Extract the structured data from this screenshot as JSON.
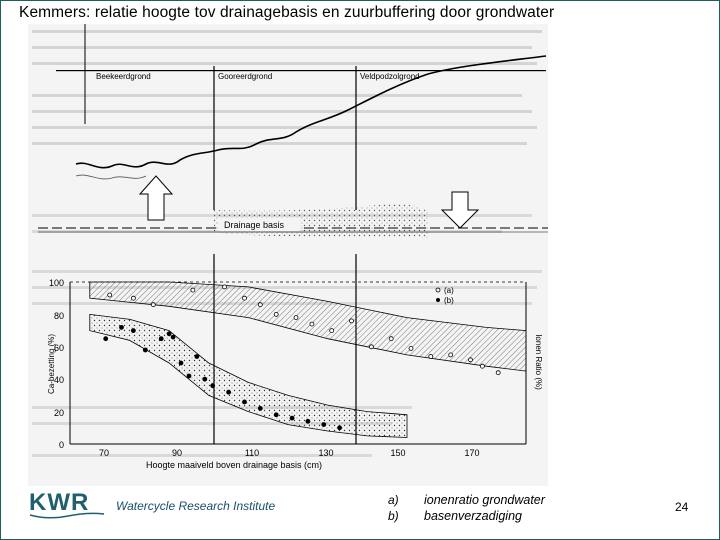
{
  "slide": {
    "title": "Kemmers: relatie hoogte tov drainagebasis  en zuurbuffering door grondwater",
    "page_number": "24"
  },
  "profile": {
    "labels": [
      "Beekeerdgrond",
      "Gooreerdgrond",
      "Veldpodzolgrond"
    ],
    "drainage_label": "Drainage basis"
  },
  "chart": {
    "y_left_label": "Ca-bezetting (%)",
    "y_right_label": "Ionen Ratio (%)",
    "x_label": "Hoogte maaiveld boven drainage basis (cm)",
    "legend": [
      "(a)",
      "(b)"
    ],
    "y_ticks": [
      "100",
      "80",
      "60",
      "40",
      "20",
      "0"
    ],
    "x_ticks": [
      "70",
      "90",
      "110",
      "130",
      "150",
      "170"
    ]
  },
  "chart_data": {
    "type": "scatter",
    "xlabel": "Hoogte maaiveld boven drainage basis (cm)",
    "ylabel": "Ca-bezetting (%)",
    "y2label": "Ionen Ratio (%)",
    "xlim": [
      70,
      180
    ],
    "ylim": [
      0,
      100
    ],
    "series": [
      {
        "name": "(a)",
        "x": [
          75,
          81,
          86,
          96,
          104,
          109,
          113,
          117,
          122,
          126,
          131,
          136,
          141,
          146,
          151,
          156,
          161,
          166,
          169,
          173
        ],
        "y": [
          92,
          90,
          86,
          95,
          97,
          90,
          86,
          80,
          78,
          74,
          70,
          76,
          60,
          65,
          59,
          54,
          55,
          52,
          48,
          44
        ]
      },
      {
        "name": "(b)",
        "x": [
          74,
          78,
          81,
          84,
          88,
          90,
          91,
          93,
          95,
          97,
          99,
          101,
          105,
          109,
          113,
          117,
          121,
          125,
          129,
          133
        ],
        "y": [
          65,
          72,
          70,
          58,
          65,
          68,
          66,
          50,
          42,
          54,
          40,
          36,
          32,
          26,
          22,
          18,
          16,
          14,
          12,
          10
        ]
      }
    ],
    "band_a": {
      "x": [
        70,
        90,
        110,
        130,
        150,
        170,
        180
      ],
      "upper": [
        100,
        100,
        97,
        88,
        78,
        72,
        70
      ],
      "lower": [
        90,
        85,
        78,
        65,
        55,
        48,
        45
      ]
    },
    "band_b": {
      "x": [
        70,
        80,
        90,
        100,
        110,
        120,
        130,
        140,
        150
      ],
      "upper": [
        80,
        77,
        70,
        50,
        38,
        30,
        24,
        20,
        18
      ],
      "lower": [
        70,
        64,
        50,
        30,
        20,
        12,
        8,
        5,
        4
      ]
    }
  },
  "footer": {
    "logo_text": "KWR",
    "institute": "Watercycle Research Institute",
    "legend_a_key": "a)",
    "legend_a_text": "ionenratio grondwater",
    "legend_b_key": "b)",
    "legend_b_text": "basenverzadiging"
  },
  "colors": {
    "frame": "#1f5f5a",
    "logo": "#1f5f6e",
    "institute": "#1a4f6e",
    "scan_bg": "#f4f4f4"
  }
}
